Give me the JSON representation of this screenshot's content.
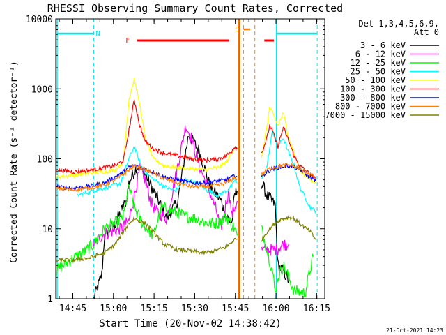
{
  "chart_data": {
    "type": "line",
    "title": "RHESSI Observing Summary Count Rates, Corrected",
    "xlabel": "Start Time (20-Nov-02 14:38:42)",
    "ylabel": "Corrected Count Rate (s⁻¹ detector⁻¹)",
    "yscale": "log",
    "ylim": [
      1,
      10000
    ],
    "xlim_minutes_after_start": [
      0,
      99.3
    ],
    "yticks": [
      {
        "value": 1,
        "label": "1"
      },
      {
        "value": 10,
        "label": "10"
      },
      {
        "value": 100,
        "label": "100"
      },
      {
        "value": 1000,
        "label": "1000"
      },
      {
        "value": 10000,
        "label": "10000"
      }
    ],
    "xticks": [
      {
        "value": 6.3,
        "label": "14:45"
      },
      {
        "value": 21.3,
        "label": "15:00"
      },
      {
        "value": 36.3,
        "label": "15:15"
      },
      {
        "value": 51.3,
        "label": "15:30"
      },
      {
        "value": 66.3,
        "label": "15:45"
      },
      {
        "value": 81.3,
        "label": "16:00"
      },
      {
        "value": 96.3,
        "label": "16:15"
      }
    ],
    "grid": false,
    "legend": {
      "placement": "right",
      "header1": "Det 1,3,4,5,6,9,",
      "header2": "Att 0"
    },
    "series": [
      {
        "name": "3 - 6 keV",
        "color": "#000000",
        "x": [
          14,
          17,
          18,
          22,
          26,
          27,
          30,
          33,
          37,
          41,
          45,
          49,
          53,
          57,
          61,
          63,
          65,
          66,
          67,
          76,
          78,
          81,
          82,
          84,
          86
        ],
        "y": [
          1,
          2.2,
          8,
          12,
          25,
          45,
          80,
          60,
          30,
          14,
          25,
          220,
          130,
          40,
          25,
          15,
          12,
          30,
          35,
          45,
          30,
          22,
          3,
          2.5,
          1.8
        ]
      },
      {
        "name": "6 - 12 keV",
        "color": "#ff00ff",
        "x": [
          14,
          17,
          20,
          24,
          27,
          29,
          31,
          33,
          35,
          37,
          41,
          44,
          48,
          50,
          53,
          56,
          59,
          61,
          63,
          64,
          65,
          66,
          67,
          76,
          78,
          81,
          84,
          86
        ],
        "y": [
          6,
          8,
          9,
          10,
          13,
          30,
          70,
          50,
          25,
          18,
          14,
          50,
          300,
          200,
          80,
          40,
          20,
          10,
          25,
          35,
          15,
          20,
          25,
          5,
          5,
          5,
          6,
          6
        ]
      },
      {
        "name": "12 - 25 keV",
        "color": "#00ff00",
        "x": [
          0,
          5,
          10,
          14,
          18,
          22,
          25,
          27,
          29,
          32,
          36,
          39,
          43,
          48,
          52,
          56,
          60,
          63,
          66,
          67,
          76,
          78,
          80,
          81,
          82,
          84,
          86,
          88,
          92,
          95
        ],
        "y": [
          2.5,
          3.5,
          4.5,
          6,
          10,
          12,
          15,
          40,
          20,
          12,
          8,
          20,
          18,
          15,
          14,
          12,
          12,
          15,
          10,
          8,
          10,
          5,
          2.5,
          1.2,
          2,
          3,
          2,
          1.3,
          1.2,
          4
        ]
      },
      {
        "name": "25 - 50 keV",
        "color": "#00ffff",
        "x": [
          0,
          8,
          14,
          20,
          24,
          27,
          29,
          32,
          35,
          40,
          44,
          48,
          52,
          56,
          60,
          63,
          65,
          66,
          67,
          76,
          78,
          80,
          82,
          84,
          86,
          88,
          90,
          94,
          96
        ],
        "y": [
          28,
          30,
          35,
          40,
          45,
          100,
          150,
          70,
          55,
          40,
          35,
          50,
          45,
          35,
          30,
          35,
          40,
          50,
          45,
          50,
          80,
          250,
          150,
          200,
          120,
          80,
          40,
          20,
          18
        ]
      },
      {
        "name": "50 - 100 keV",
        "color": "#ffff00",
        "x": [
          0,
          6,
          12,
          18,
          22,
          25,
          27,
          29,
          31,
          33,
          36,
          40,
          45,
          50,
          55,
          60,
          63,
          65,
          66,
          67,
          76,
          78,
          79,
          80,
          82,
          84,
          86,
          88,
          90,
          94,
          96
        ],
        "y": [
          55,
          58,
          62,
          65,
          70,
          90,
          700,
          1400,
          600,
          200,
          100,
          80,
          75,
          72,
          70,
          75,
          90,
          120,
          150,
          140,
          100,
          300,
          550,
          450,
          300,
          450,
          200,
          120,
          70,
          50,
          45
        ]
      },
      {
        "name": "100 - 300 keV",
        "color": "#ff0000",
        "x": [
          0,
          6,
          12,
          18,
          22,
          25,
          27,
          29,
          31,
          33,
          36,
          40,
          45,
          50,
          55,
          60,
          63,
          65,
          66,
          67,
          76,
          78,
          79,
          80,
          82,
          84,
          86,
          88,
          90,
          94,
          96
        ],
        "y": [
          70,
          65,
          68,
          75,
          80,
          95,
          250,
          700,
          300,
          180,
          140,
          120,
          110,
          100,
          95,
          100,
          110,
          130,
          150,
          140,
          120,
          200,
          300,
          250,
          150,
          280,
          180,
          110,
          80,
          60,
          50
        ]
      },
      {
        "name": "300 - 800 keV",
        "color": "#0000ff",
        "x": [
          0,
          6,
          12,
          18,
          22,
          25,
          27,
          29,
          31,
          33,
          36,
          40,
          45,
          50,
          55,
          60,
          63,
          65,
          66,
          67,
          76,
          78,
          80,
          82,
          84,
          86,
          88,
          90,
          94,
          96
        ],
        "y": [
          40,
          38,
          40,
          45,
          55,
          65,
          75,
          80,
          75,
          70,
          65,
          55,
          50,
          45,
          45,
          48,
          50,
          55,
          58,
          55,
          55,
          65,
          72,
          75,
          78,
          80,
          75,
          70,
          55,
          48
        ]
      },
      {
        "name": "800 - 7000 keV",
        "color": "#ff8000",
        "x": [
          0,
          6,
          12,
          18,
          22,
          25,
          27,
          29,
          31,
          33,
          36,
          40,
          45,
          50,
          55,
          60,
          63,
          65,
          66,
          67,
          76,
          78,
          80,
          82,
          84,
          86,
          88,
          90,
          94,
          96
        ],
        "y": [
          38,
          36,
          38,
          42,
          50,
          60,
          70,
          78,
          75,
          70,
          62,
          52,
          45,
          40,
          40,
          42,
          45,
          50,
          55,
          52,
          60,
          70,
          75,
          78,
          80,
          82,
          78,
          72,
          60,
          52
        ]
      },
      {
        "name": "7000 - 15000 keV",
        "color": "#808000",
        "x": [
          0,
          6,
          12,
          18,
          22,
          25,
          27,
          29,
          31,
          33,
          36,
          40,
          45,
          50,
          55,
          60,
          63,
          65,
          66,
          67,
          76,
          78,
          80,
          82,
          84,
          86,
          88,
          90,
          94,
          96
        ],
        "y": [
          3.5,
          3.6,
          3.8,
          4.5,
          6,
          9,
          12,
          14,
          13,
          12,
          9,
          6,
          5,
          4.8,
          4.5,
          5,
          5.5,
          6.5,
          7,
          7,
          7,
          9,
          11,
          13,
          14,
          14.5,
          14,
          12,
          9,
          7
        ]
      }
    ],
    "annotations": [
      {
        "label": "N",
        "color": "#00e5ee"
      },
      {
        "label": "F",
        "color": "#ff0000"
      },
      {
        "label": "S",
        "color": "#ff8000"
      }
    ],
    "footer": "21-Oct-2021 14:23"
  }
}
